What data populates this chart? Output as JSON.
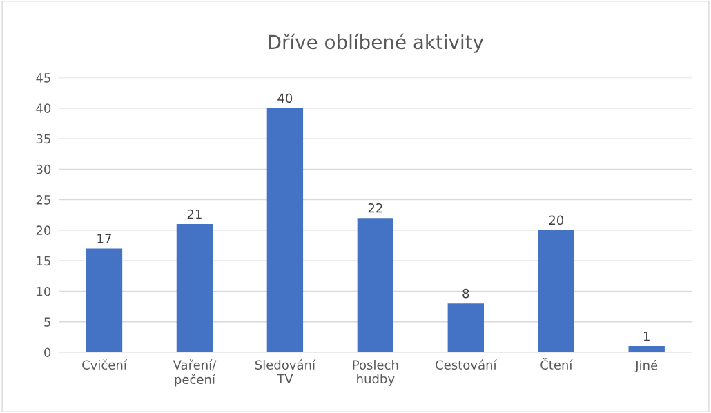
{
  "chart_data": {
    "type": "bar",
    "title": "Dříve oblíbené aktivity",
    "categories": [
      "Cvičení",
      "Vaření/pečení",
      "Sledování TV",
      "Poslech hudby",
      "Cestování",
      "Čtení",
      "Jiné"
    ],
    "values": [
      17,
      21,
      40,
      22,
      8,
      20,
      1
    ],
    "color": "#4472c4",
    "ylim": [
      0,
      45
    ],
    "yticks": [
      0,
      5,
      10,
      15,
      20,
      25,
      30,
      35,
      40,
      45
    ],
    "grid": "y",
    "data_labels": true
  }
}
